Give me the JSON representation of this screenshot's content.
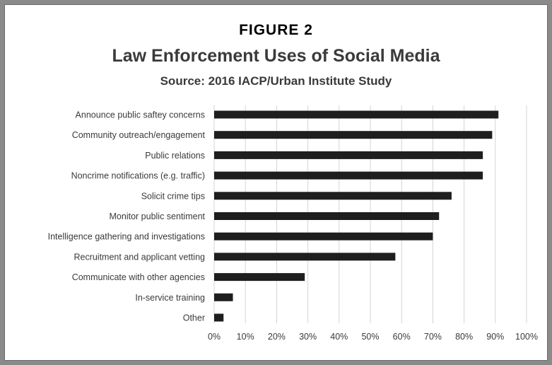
{
  "figure_label": "FIGURE 2",
  "colors": {
    "bar": "#1e1e1e",
    "grid": "#d4d4d4",
    "text": "#3a3a3a",
    "background": "#ffffff"
  },
  "chart_data": {
    "type": "bar",
    "orientation": "horizontal",
    "title": "Law Enforcement Uses of Social Media",
    "subtitle": "Source: 2016 IACP/Urban Institute Study",
    "categories": [
      "Announce public saftey concerns",
      "Community outreach/engagement",
      "Public relations",
      "Noncrime notifications (e.g. traffic)",
      "Solicit crime tips",
      "Monitor public sentiment",
      "Intelligence gathering and investigations",
      "Recruitment and applicant vetting",
      "Communicate with other agencies",
      "In-service training",
      "Other"
    ],
    "values": [
      91,
      89,
      86,
      86,
      76,
      72,
      70,
      58,
      29,
      6,
      3
    ],
    "xlim": [
      0,
      100
    ],
    "xticks": [
      "0%",
      "10%",
      "20%",
      "30%",
      "40%",
      "50%",
      "60%",
      "70%",
      "80%",
      "90%",
      "100%"
    ],
    "grid": true,
    "legend": "none"
  }
}
